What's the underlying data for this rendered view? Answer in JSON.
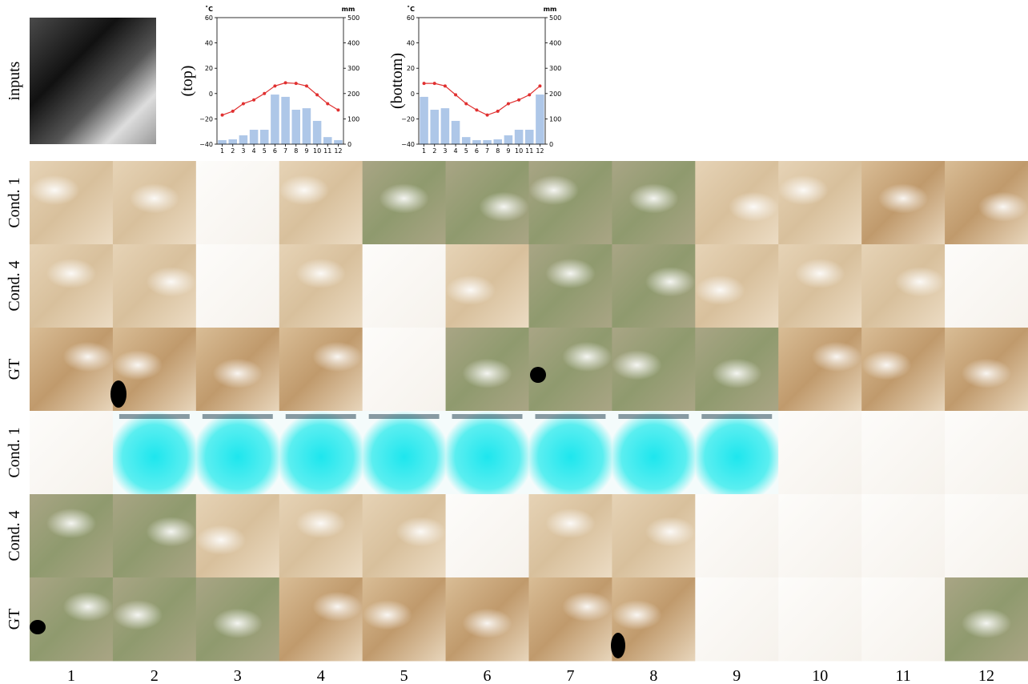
{
  "figure": {
    "inputs_label": "inputs",
    "row_labels": [
      "Cond. 1",
      "Cond. 4",
      "GT",
      "Cond. 1",
      "Cond. 4",
      "GT"
    ],
    "column_labels": [
      "1",
      "2",
      "3",
      "4",
      "5",
      "6",
      "7",
      "8",
      "9",
      "10",
      "11",
      "12"
    ]
  },
  "chart_data": [
    {
      "type": "bar-line",
      "label": "(top)",
      "ylabel": "˚C",
      "y2label": "mm",
      "categories": [
        "1",
        "2",
        "3",
        "4",
        "5",
        "6",
        "7",
        "8",
        "9",
        "10",
        "11",
        "12"
      ],
      "ylim": [
        -40,
        60
      ],
      "yticks": [
        {
          "value": -40,
          "label": "−40"
        },
        {
          "value": -20,
          "label": "−20"
        },
        0,
        20,
        40,
        60
      ],
      "y2lim": [
        0,
        500
      ],
      "y2ticks": [
        0,
        100,
        200,
        300,
        400,
        500
      ],
      "series": [
        {
          "type": "bar",
          "axis": "y2",
          "color": "#aec7e8",
          "values": [
            16,
            19,
            35,
            57,
            57,
            196,
            187,
            136,
            142,
            92,
            28,
            16
          ]
        },
        {
          "type": "line",
          "color": "#e03030",
          "values": [
            -17,
            -14,
            -8,
            -5,
            0,
            6,
            8.5,
            8,
            6,
            -1,
            -8,
            -13
          ]
        }
      ]
    },
    {
      "type": "bar-line",
      "label": "(bottom)",
      "ylabel": "˚C",
      "y2label": "mm",
      "categories": [
        "1",
        "2",
        "3",
        "4",
        "5",
        "6",
        "7",
        "8",
        "9",
        "10",
        "11",
        "12"
      ],
      "ylim": [
        -40,
        60
      ],
      "yticks": [
        {
          "value": -40,
          "label": "−40"
        },
        {
          "value": -20,
          "label": "−20"
        },
        0,
        20,
        40,
        60
      ],
      "y2lim": [
        0,
        500
      ],
      "y2ticks": [
        0,
        100,
        200,
        300,
        400,
        500
      ],
      "series": [
        {
          "type": "bar",
          "axis": "y2",
          "color": "#aec7e8",
          "values": [
            187,
            136,
            142,
            92,
            28,
            16,
            16,
            19,
            35,
            57,
            57,
            196
          ]
        },
        {
          "type": "line",
          "color": "#e03030",
          "values": [
            8,
            8,
            6,
            -1,
            -8,
            -13,
            -17,
            -14,
            -8,
            -5,
            -1,
            6
          ]
        }
      ]
    }
  ]
}
